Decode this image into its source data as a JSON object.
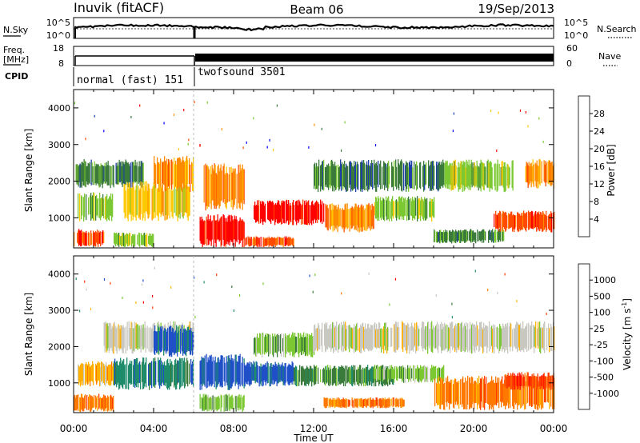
{
  "header": {
    "station": "Inuvik (fitACF)",
    "beam": "Beam 06",
    "date": "19/Sep/2013"
  },
  "strip_labels": {
    "nsky": "N.Sky",
    "nsearch": "N.Search",
    "freq_line1": "Freq.",
    "freq_line2": "[MHz]",
    "nave": "Nave",
    "cpid": "CPID"
  },
  "strip_ticks": {
    "nsky_top": "10^5",
    "nsky_bottom": "10^0",
    "nsearch_top": "10^5",
    "nsearch_bottom": "10^0",
    "freq_top": "18",
    "freq_bottom": "8",
    "nave_top": "60",
    "nave_bottom": "0"
  },
  "cpid_modes": [
    "normal (fast) 151",
    "twofsound 3501"
  ],
  "x_axis": {
    "label": "Time UT",
    "ticks": [
      "00:00",
      "04:00",
      "08:00",
      "12:00",
      "16:00",
      "20:00",
      "00:00"
    ]
  },
  "chart_data": [
    {
      "type": "heatmap",
      "title": "",
      "xlabel": "Time UT",
      "ylabel": "Slant Range [km]",
      "x_ticks": [
        "00:00",
        "04:00",
        "08:00",
        "12:00",
        "16:00",
        "20:00",
        "00:00"
      ],
      "y_ticks": [
        1000,
        2000,
        3000,
        4000
      ],
      "xlim_hours": [
        0,
        24
      ],
      "ylim_km": [
        180,
        4500
      ],
      "colorbar": {
        "label": "Power [dB]",
        "ticks": [
          4,
          8,
          12,
          16,
          20,
          24,
          28
        ],
        "colors": [
          "#0000ff",
          "#1f3fa8",
          "#3a7a3a",
          "#7cc832",
          "#ffc800",
          "#ff8c00",
          "#ff4a00",
          "#ff0000"
        ]
      },
      "regions": [
        {
          "t0": 0.0,
          "t1": 1.5,
          "r0": 200,
          "r1": 700,
          "level": 6
        },
        {
          "t0": 0.2,
          "t1": 2.0,
          "r0": 900,
          "r1": 1700,
          "level": 3
        },
        {
          "t0": 0.1,
          "t1": 3.5,
          "r0": 1800,
          "r1": 2600,
          "level": 2
        },
        {
          "t0": 2.0,
          "t1": 4.0,
          "r0": 200,
          "r1": 600,
          "level": 3
        },
        {
          "t0": 2.5,
          "t1": 5.8,
          "r0": 900,
          "r1": 2000,
          "level": 4
        },
        {
          "t0": 4.0,
          "t1": 6.0,
          "r0": 1700,
          "r1": 2700,
          "level": 5
        },
        {
          "t0": 6.3,
          "t1": 8.5,
          "r0": 200,
          "r1": 1100,
          "level": 7
        },
        {
          "t0": 6.5,
          "t1": 8.5,
          "r0": 1200,
          "r1": 2500,
          "level": 5
        },
        {
          "t0": 8.5,
          "t1": 11.0,
          "r0": 200,
          "r1": 500,
          "level": 6
        },
        {
          "t0": 9.0,
          "t1": 12.5,
          "r0": 800,
          "r1": 1500,
          "level": 7
        },
        {
          "t0": 12.5,
          "t1": 15.0,
          "r0": 600,
          "r1": 1400,
          "level": 5
        },
        {
          "t0": 12.0,
          "t1": 18.5,
          "r0": 1700,
          "r1": 2600,
          "level": 2
        },
        {
          "t0": 15.0,
          "t1": 18.0,
          "r0": 900,
          "r1": 1600,
          "level": 3
        },
        {
          "t0": 18.0,
          "t1": 21.5,
          "r0": 300,
          "r1": 700,
          "level": 2
        },
        {
          "t0": 18.5,
          "t1": 22.0,
          "r0": 1700,
          "r1": 2600,
          "level": 3
        },
        {
          "t0": 21.0,
          "t1": 24.0,
          "r0": 600,
          "r1": 1200,
          "level": 6
        },
        {
          "t0": 22.5,
          "t1": 24.0,
          "r0": 1800,
          "r1": 2600,
          "level": 5
        }
      ]
    },
    {
      "type": "heatmap",
      "title": "",
      "xlabel": "Time UT",
      "ylabel": "Slant Range [km]",
      "x_ticks": [
        "00:00",
        "04:00",
        "08:00",
        "12:00",
        "16:00",
        "20:00",
        "00:00"
      ],
      "y_ticks": [
        1000,
        2000,
        3000,
        4000
      ],
      "xlim_hours": [
        0,
        24
      ],
      "ylim_km": [
        180,
        4500
      ],
      "colorbar": {
        "label": "Velocity [m s^-1]",
        "ticks": [
          1000,
          500,
          100,
          25,
          -25,
          -100,
          -500,
          -1000
        ],
        "colors": [
          "#2050c8",
          "#1e8c6a",
          "#3a7a3a",
          "#7cc832",
          "#c8c8c0",
          "#ffb000",
          "#ff7800",
          "#ff3c00",
          "#ff0000"
        ]
      },
      "regions": [
        {
          "t0": 0.0,
          "t1": 2.0,
          "r0": 200,
          "r1": 700,
          "level": 6
        },
        {
          "t0": 0.2,
          "t1": 2.0,
          "r0": 900,
          "r1": 1600,
          "level": 5
        },
        {
          "t0": 1.5,
          "t1": 6.0,
          "r0": 1800,
          "r1": 2700,
          "level": 4
        },
        {
          "t0": 2.0,
          "t1": 6.0,
          "r0": 800,
          "r1": 1700,
          "level": 1
        },
        {
          "t0": 4.0,
          "t1": 6.0,
          "r0": 1700,
          "r1": 2600,
          "level": 0
        },
        {
          "t0": 6.3,
          "t1": 8.5,
          "r0": 800,
          "r1": 1800,
          "level": 0
        },
        {
          "t0": 6.3,
          "t1": 8.5,
          "r0": 200,
          "r1": 700,
          "level": 3
        },
        {
          "t0": 8.5,
          "t1": 11.0,
          "r0": 900,
          "r1": 1600,
          "level": 0
        },
        {
          "t0": 9.0,
          "t1": 12.0,
          "r0": 1700,
          "r1": 2400,
          "level": 3
        },
        {
          "t0": 11.0,
          "t1": 16.0,
          "r0": 900,
          "r1": 1500,
          "level": 2
        },
        {
          "t0": 12.5,
          "t1": 16.5,
          "r0": 300,
          "r1": 600,
          "level": 6
        },
        {
          "t0": 12.0,
          "t1": 24.0,
          "r0": 1800,
          "r1": 2700,
          "level": 4
        },
        {
          "t0": 15.0,
          "t1": 18.5,
          "r0": 1000,
          "r1": 1500,
          "level": 3
        },
        {
          "t0": 18.0,
          "t1": 24.0,
          "r0": 250,
          "r1": 1200,
          "level": 6
        },
        {
          "t0": 21.5,
          "t1": 24.0,
          "r0": 800,
          "r1": 1300,
          "level": 7
        }
      ]
    }
  ]
}
